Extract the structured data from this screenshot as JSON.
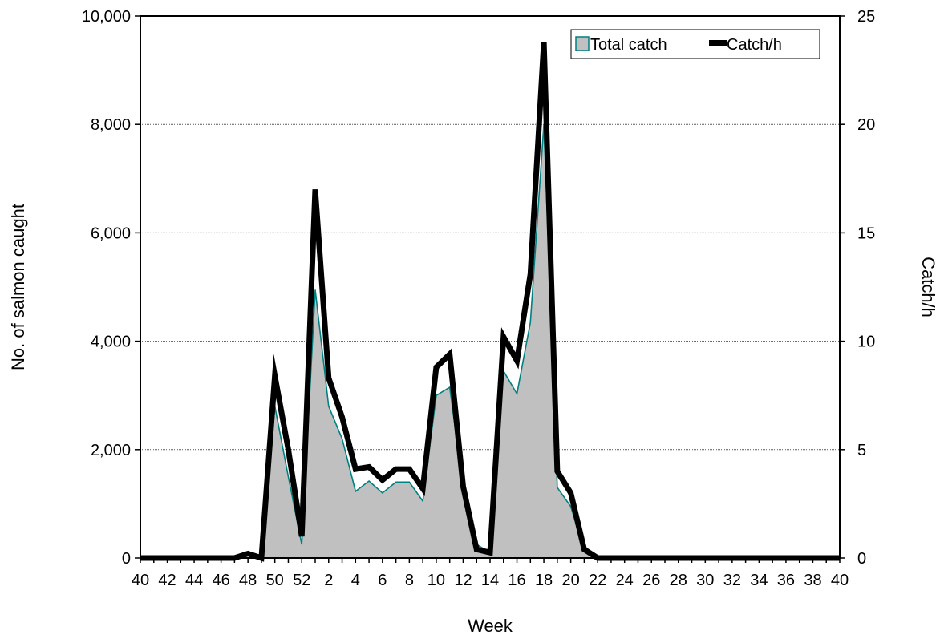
{
  "chart_data": {
    "type": "area",
    "xlabel": "Week",
    "ylabel": "No. of salmon caught",
    "y2label": "Catch/h",
    "ylim": [
      0,
      10000
    ],
    "y2lim": [
      0,
      25
    ],
    "y_ticks": [
      "0",
      "2,000",
      "4,000",
      "6,000",
      "8,000",
      "10,000"
    ],
    "y2_ticks": [
      "0",
      "5",
      "10",
      "15",
      "20",
      "25"
    ],
    "x_ticks": [
      "40",
      "42",
      "44",
      "46",
      "48",
      "50",
      "52",
      "2",
      "4",
      "6",
      "8",
      "10",
      "12",
      "14",
      "16",
      "18",
      "20",
      "22",
      "24",
      "26",
      "28",
      "30",
      "32",
      "34",
      "36",
      "38",
      "40"
    ],
    "grid": "horizontal",
    "legend_position": "top-right",
    "weeks": [
      "40",
      "41",
      "42",
      "43",
      "44",
      "45",
      "46",
      "47",
      "48",
      "49",
      "50",
      "51",
      "52",
      "1",
      "2",
      "3",
      "4",
      "5",
      "6",
      "7",
      "8",
      "9",
      "10",
      "11",
      "12",
      "13",
      "14",
      "15",
      "16",
      "17",
      "18",
      "19",
      "20",
      "21",
      "22",
      "23",
      "24",
      "25",
      "26",
      "27",
      "28",
      "29",
      "30",
      "31",
      "32",
      "33",
      "34",
      "35",
      "36",
      "37",
      "38",
      "39",
      "40"
    ],
    "series": [
      {
        "name": "Total catch",
        "axis": "left",
        "type": "area",
        "fill": "#c0c0c0",
        "stroke": "#008080",
        "values": [
          0,
          0,
          0,
          0,
          0,
          0,
          0,
          0,
          0,
          0,
          2800,
          1500,
          250,
          4950,
          2800,
          2200,
          1230,
          1420,
          1200,
          1400,
          1400,
          1050,
          3000,
          3150,
          1300,
          250,
          100,
          3450,
          3030,
          4350,
          8000,
          1300,
          950,
          150,
          0,
          0,
          0,
          0,
          0,
          0,
          0,
          0,
          0,
          0,
          0,
          0,
          0,
          0,
          0,
          0,
          0,
          0,
          0
        ]
      },
      {
        "name": "Catch/h",
        "axis": "right",
        "type": "line",
        "color": "#000000",
        "values": [
          0,
          0,
          0,
          0,
          0,
          0,
          0,
          0,
          0.2,
          0,
          8.4,
          5,
          1,
          17,
          8.3,
          6.5,
          4.1,
          4.2,
          3.6,
          4.1,
          4.1,
          3.2,
          8.8,
          9.4,
          3.3,
          0.4,
          0.25,
          10.2,
          9.1,
          13.1,
          23.8,
          4,
          3,
          0.4,
          0,
          0,
          0,
          0,
          0,
          0,
          0,
          0,
          0,
          0,
          0,
          0,
          0,
          0,
          0,
          0,
          0,
          0,
          0
        ]
      }
    ]
  }
}
